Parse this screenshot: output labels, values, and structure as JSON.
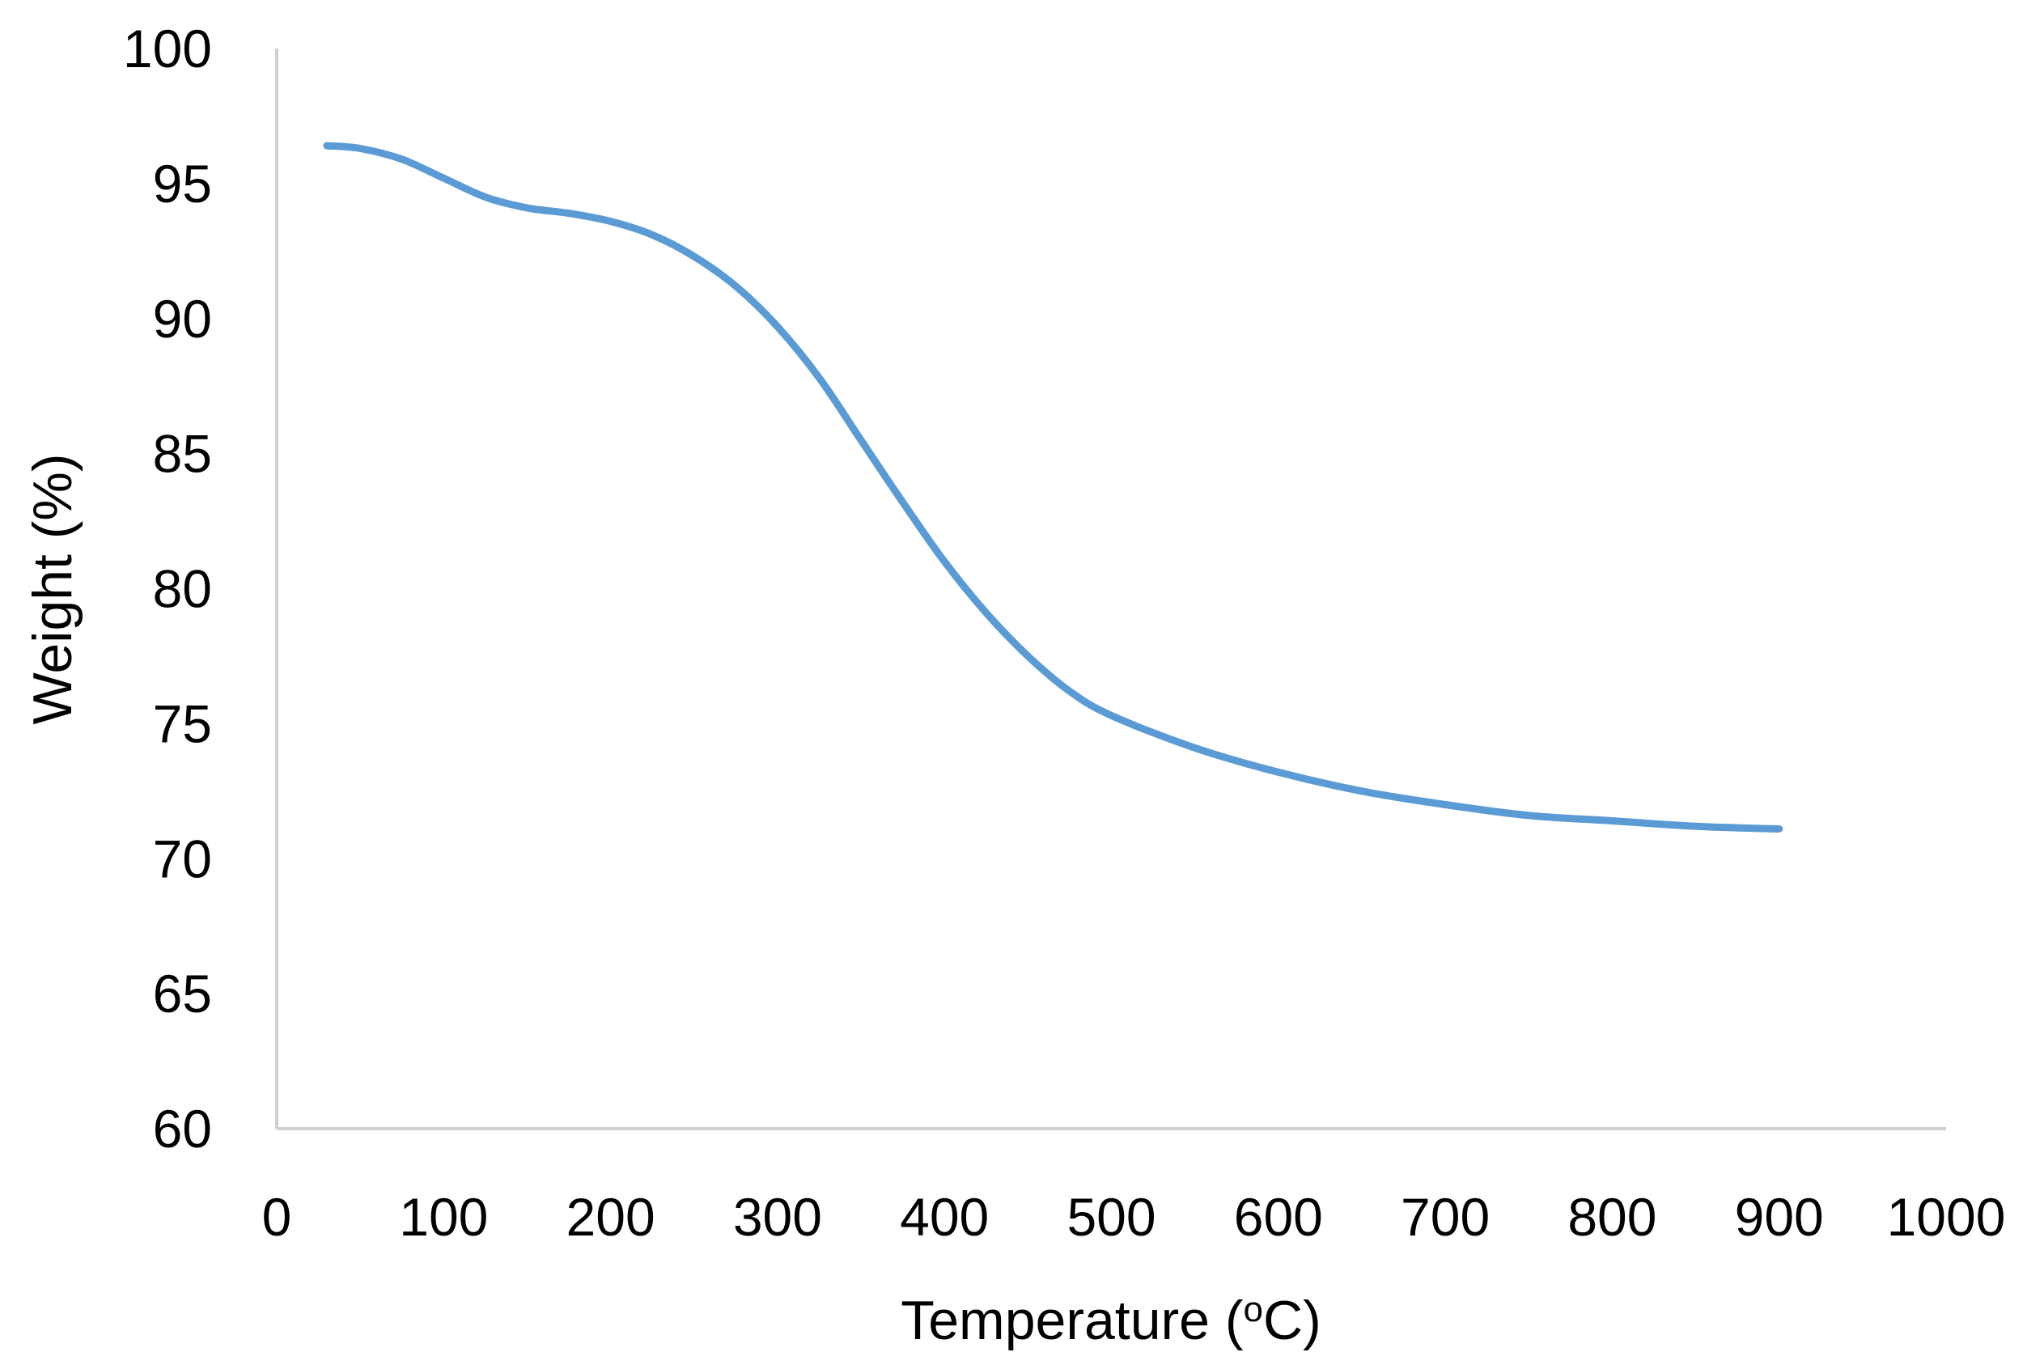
{
  "chart_data": {
    "type": "line",
    "title": "",
    "xlabel": {
      "prefix": "Temperature (",
      "sup": "o",
      "suffix": "C)"
    },
    "ylabel": "Weight (%)",
    "xlim": [
      0,
      1000
    ],
    "ylim": [
      60,
      100
    ],
    "x_ticks": [
      "0",
      "100",
      "200",
      "300",
      "400",
      "500",
      "600",
      "700",
      "800",
      "900",
      "1000"
    ],
    "y_ticks": [
      "60",
      "65",
      "70",
      "75",
      "80",
      "85",
      "90",
      "95",
      "100"
    ],
    "grid": false,
    "legend": "none",
    "line_color": "#5b9bd5",
    "series": [
      {
        "x": [
          30,
          50,
          75,
          100,
          125,
          150,
          175,
          200,
          225,
          250,
          275,
          300,
          325,
          350,
          375,
          400,
          425,
          450,
          475,
          500,
          550,
          600,
          650,
          700,
          750,
          800,
          850,
          900
        ],
        "y": [
          96.4,
          96.3,
          95.9,
          95.2,
          94.5,
          94.1,
          93.9,
          93.6,
          93.1,
          92.3,
          91.2,
          89.7,
          87.8,
          85.5,
          83.2,
          81.0,
          79.1,
          77.5,
          76.2,
          75.3,
          74.1,
          73.2,
          72.5,
          72.0,
          71.6,
          71.4,
          71.2,
          71.1
        ]
      }
    ]
  }
}
